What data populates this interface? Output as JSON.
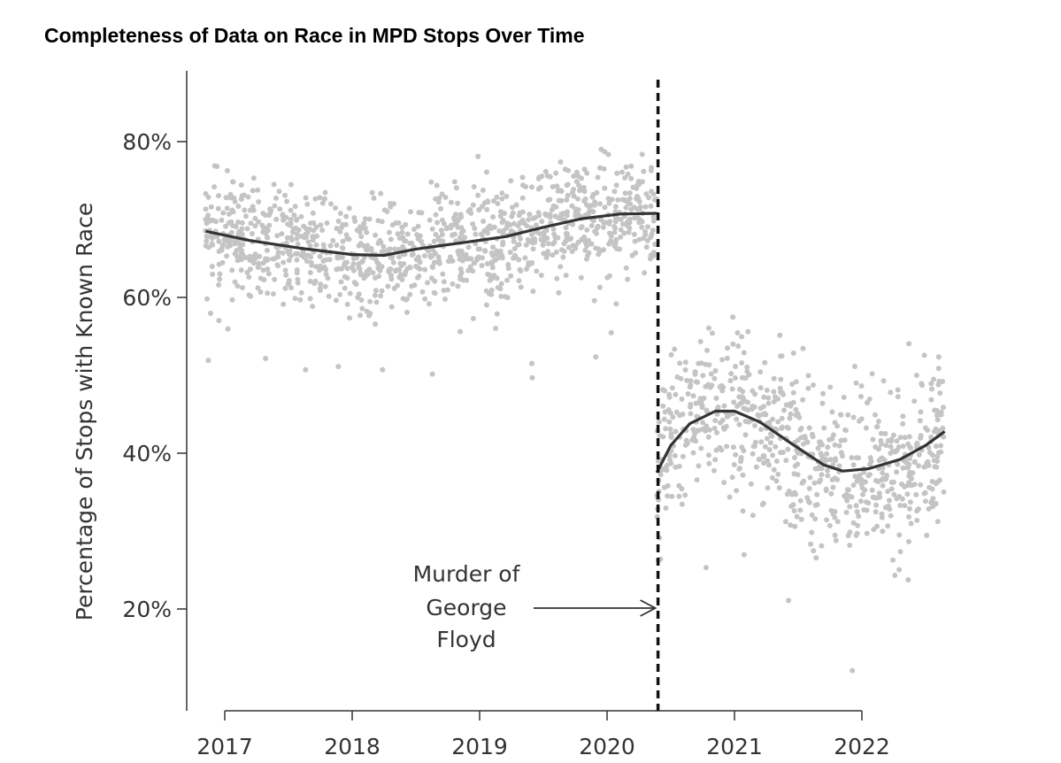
{
  "chart_data": {
    "type": "scatter",
    "title": "Completeness of Data on Race in MPD Stops Over Time",
    "xlabel": "",
    "ylabel": "Percentage of Stops with Known Race",
    "xlim": [
      2016.7,
      2022.75
    ],
    "ylim": [
      8,
      90
    ],
    "x_ticks": [
      2017,
      2018,
      2019,
      2020,
      2021,
      2022
    ],
    "x_tick_labels": [
      "2017",
      "2018",
      "2019",
      "2020",
      "2021",
      "2022"
    ],
    "y_ticks": [
      20,
      40,
      60,
      80
    ],
    "y_tick_labels": [
      "20%",
      "40%",
      "60%",
      "80%"
    ],
    "grid": false,
    "event": {
      "x": 2020.4,
      "label_lines": [
        "Murder of",
        "George",
        "Floyd"
      ],
      "label_y": 20
    },
    "scatter_color": "#c4c4c4",
    "trend_color": "#333333",
    "trend_before": [
      [
        2016.85,
        68.5
      ],
      [
        2017.2,
        67.3
      ],
      [
        2017.6,
        66.3
      ],
      [
        2018.0,
        65.5
      ],
      [
        2018.25,
        65.4
      ],
      [
        2018.5,
        66.2
      ],
      [
        2018.9,
        67.1
      ],
      [
        2019.2,
        67.8
      ],
      [
        2019.5,
        69.0
      ],
      [
        2019.8,
        70.1
      ],
      [
        2020.1,
        70.7
      ],
      [
        2020.39,
        70.8
      ]
    ],
    "trend_after": [
      [
        2020.39,
        37.5
      ],
      [
        2020.5,
        41.0
      ],
      [
        2020.65,
        43.8
      ],
      [
        2020.85,
        45.4
      ],
      [
        2021.0,
        45.4
      ],
      [
        2021.2,
        44.0
      ],
      [
        2021.45,
        41.2
      ],
      [
        2021.7,
        38.5
      ],
      [
        2021.85,
        37.7
      ],
      [
        2022.05,
        38.0
      ],
      [
        2022.3,
        39.2
      ],
      [
        2022.5,
        41.0
      ],
      [
        2022.65,
        42.8
      ]
    ],
    "scatter_generation": {
      "seed": 7,
      "points_per_year": 330,
      "spread_before": 6.5,
      "spread_after": 9.5
    }
  }
}
